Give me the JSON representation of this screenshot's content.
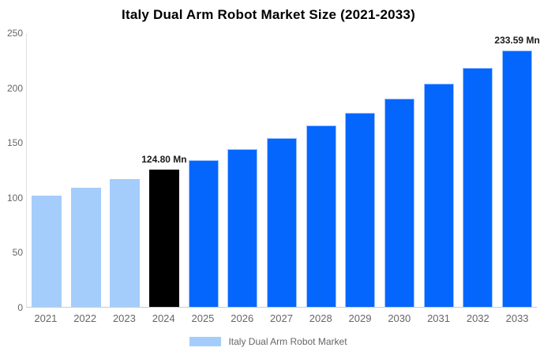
{
  "chart_data": {
    "type": "bar",
    "title": "Italy Dual Arm Robot Market Size (2021-2033)",
    "legend": "Italy Dual Arm Robot Market",
    "legend_position": "bottom",
    "categories": [
      "2021",
      "2022",
      "2023",
      "2024",
      "2025",
      "2026",
      "2027",
      "2028",
      "2029",
      "2030",
      "2031",
      "2032",
      "2033"
    ],
    "values": [
      101.04,
      108.33,
      116.14,
      124.8,
      133.81,
      143.46,
      153.82,
      164.92,
      176.82,
      189.58,
      203.26,
      217.92,
      233.59
    ],
    "ylim": [
      0,
      250
    ],
    "yticks": [
      0,
      50,
      100,
      150,
      200,
      250
    ],
    "xlabel": "",
    "ylabel": "",
    "grid": false,
    "bar_styles": [
      "past",
      "past",
      "past",
      "highlight",
      "forecast",
      "forecast",
      "forecast",
      "forecast",
      "forecast",
      "forecast",
      "forecast",
      "forecast",
      "forecast"
    ],
    "annotations": [
      {
        "category": "2024",
        "text": "124.80 Mn"
      },
      {
        "category": "2033",
        "text": "233.59 Mn"
      }
    ],
    "colors": {
      "past": "#a5cdfb",
      "highlight": "#000000",
      "forecast": "#0566fe",
      "forecast_border": "#9cc3fd",
      "axis_label": "#666666",
      "annotation": "#1a1a1a",
      "title": "#000000"
    }
  }
}
